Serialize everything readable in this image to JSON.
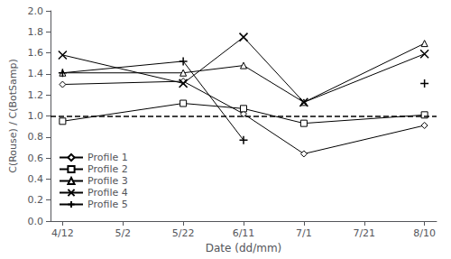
{
  "chart_data": {
    "type": "line",
    "xlabel": "Date (dd/mm)",
    "ylabel": "C(Rouse) / C(BotSamp)",
    "xlim": [
      -0.2,
      6.2
    ],
    "xticks": [
      {
        "value": 0,
        "label": "4/12"
      },
      {
        "value": 1,
        "label": "5/2"
      },
      {
        "value": 2,
        "label": "5/22"
      },
      {
        "value": 3,
        "label": "6/11"
      },
      {
        "value": 4,
        "label": "7/1"
      },
      {
        "value": 5,
        "label": "7/21"
      },
      {
        "value": 6,
        "label": "8/10"
      }
    ],
    "ylim": [
      0.0,
      2.0
    ],
    "yticks": [
      {
        "value": 0.0,
        "label": "0.0"
      },
      0.2,
      0.4,
      0.6,
      0.8,
      {
        "value": 1.0,
        "label": "1.0"
      },
      1.2,
      1.4,
      1.6,
      1.8,
      {
        "value": 2.0,
        "label": "2.0"
      }
    ],
    "grid": false,
    "legend": "lower left",
    "series": [
      {
        "name": "Profile 1",
        "color": "black",
        "marker": "diamond",
        "line_style": "solid",
        "x": [
          0,
          2,
          3,
          4,
          6
        ],
        "values": [
          1.3,
          1.33,
          1.02,
          0.64,
          0.91
        ]
      },
      {
        "name": "Profile 2",
        "color": "black",
        "marker": "square",
        "line_style": "solid",
        "x": [
          0,
          2,
          3,
          4,
          6
        ],
        "values": [
          0.95,
          1.12,
          1.07,
          0.93,
          1.01
        ]
      },
      {
        "name": "Profile 3",
        "color": "black",
        "marker": "triangle",
        "line_style": "solid",
        "x": [
          0,
          2,
          3,
          4,
          6
        ],
        "values": [
          1.41,
          1.41,
          1.48,
          1.13,
          1.69
        ]
      },
      {
        "name": "Profile 4",
        "color": "black",
        "marker": "x",
        "line_style": "solid",
        "x": [
          0,
          2,
          3,
          4,
          6
        ],
        "values": [
          1.58,
          1.31,
          1.75,
          1.13,
          1.59
        ]
      },
      {
        "name": "Profile 5",
        "color": "black",
        "marker": "plus",
        "line_style": "solid",
        "x": [
          0,
          2,
          3,
          4,
          6
        ],
        "values": [
          1.41,
          1.52,
          0.77,
          null,
          1.31
        ]
      }
    ],
    "hlines": [
      {
        "y": 1.0,
        "line_style": "dashed",
        "color": "black"
      }
    ]
  }
}
